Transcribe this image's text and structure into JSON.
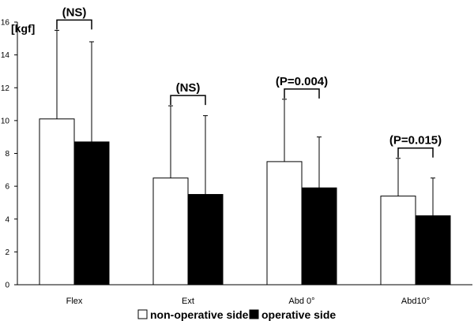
{
  "chart_data": {
    "type": "bar",
    "unit_label": "[kgf]",
    "categories": [
      "Flex",
      "Ext",
      "Abd 0°",
      "Abd10°"
    ],
    "series": [
      {
        "name": "non-operative side",
        "color": "#ffffff",
        "values": [
          10.1,
          6.5,
          7.5,
          5.4
        ],
        "errors": [
          5.4,
          4.4,
          3.8,
          2.3
        ]
      },
      {
        "name": "operative side",
        "color": "#000000",
        "values": [
          8.7,
          5.5,
          5.9,
          4.2
        ],
        "errors": [
          6.1,
          4.8,
          3.1,
          2.3
        ]
      }
    ],
    "annotations": [
      "(NS)",
      "(NS)",
      "(P=0.004)",
      "(P=0.015)"
    ],
    "ylim": [
      0,
      16
    ],
    "yticks": [
      0,
      2,
      4,
      6,
      8,
      10,
      12,
      14,
      16
    ],
    "legend_position": "bottom-center",
    "grid": false
  }
}
